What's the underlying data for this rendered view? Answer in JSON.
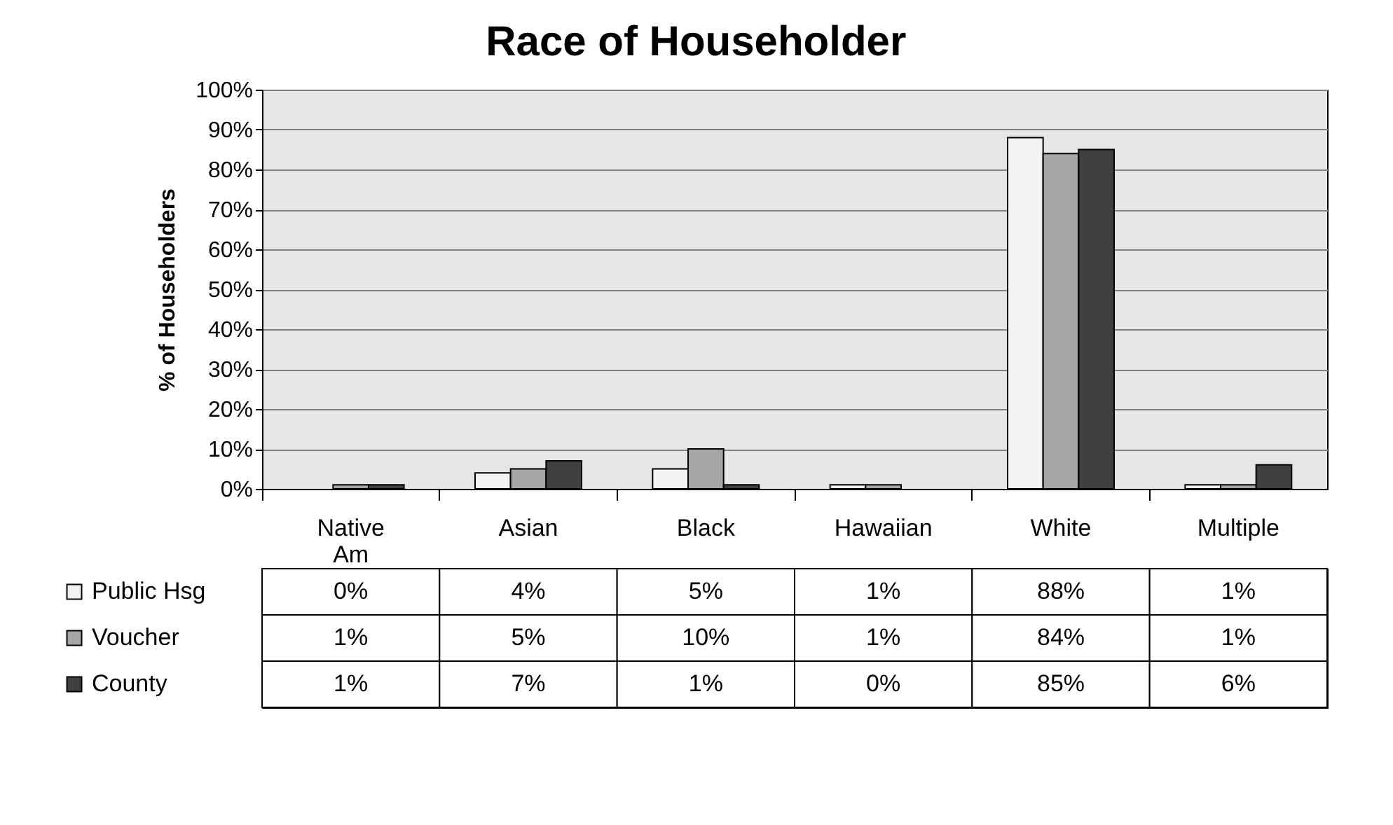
{
  "chart_data": {
    "type": "bar",
    "title": "Race of Householder",
    "ylabel": "% of Householders",
    "categories": [
      "Native Am",
      "Asian",
      "Black",
      "Hawaiian",
      "White",
      "Multiple"
    ],
    "series": [
      {
        "name": "Public Hsg",
        "color": "#f2f2f2",
        "values": [
          0,
          4,
          5,
          1,
          88,
          1
        ],
        "value_labels": [
          "0%",
          "4%",
          "5%",
          "1%",
          "88%",
          "1%"
        ]
      },
      {
        "name": "Voucher",
        "color": "#a6a6a6",
        "values": [
          1,
          5,
          10,
          1,
          84,
          1
        ],
        "value_labels": [
          "1%",
          "5%",
          "10%",
          "1%",
          "84%",
          "1%"
        ]
      },
      {
        "name": "County",
        "color": "#404040",
        "values": [
          1,
          7,
          1,
          0,
          85,
          6
        ],
        "value_labels": [
          "1%",
          "7%",
          "1%",
          "0%",
          "85%",
          "6%"
        ]
      }
    ],
    "ylim": [
      0,
      100
    ],
    "yticks": [
      {
        "value": 0,
        "label": "0%"
      },
      {
        "value": 10,
        "label": "10%"
      },
      {
        "value": 20,
        "label": "20%"
      },
      {
        "value": 30,
        "label": "30%"
      },
      {
        "value": 40,
        "label": "40%"
      },
      {
        "value": 50,
        "label": "50%"
      },
      {
        "value": 60,
        "label": "60%"
      },
      {
        "value": 70,
        "label": "70%"
      },
      {
        "value": 80,
        "label": "80%"
      },
      {
        "value": 90,
        "label": "90%"
      },
      {
        "value": 100,
        "label": "100%"
      }
    ],
    "grid": "y",
    "legend": "bottom"
  }
}
